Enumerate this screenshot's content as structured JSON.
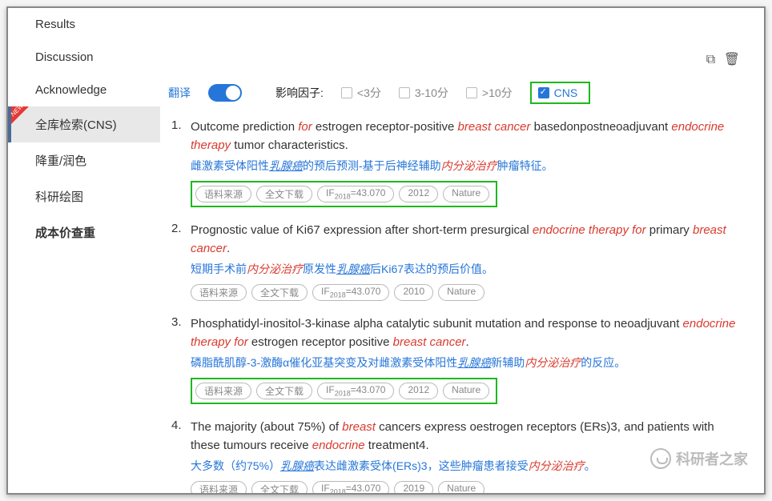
{
  "sidebar": {
    "items": [
      {
        "label": "Results",
        "active": false,
        "bold": false,
        "new": false
      },
      {
        "label": "Discussion",
        "active": false,
        "bold": false,
        "new": false
      },
      {
        "label": "Acknowledge",
        "active": false,
        "bold": false,
        "new": false
      },
      {
        "label": "全库检索(CNS)",
        "active": true,
        "bold": false,
        "new": true
      },
      {
        "label": "降重/润色",
        "active": false,
        "bold": false,
        "new": false
      },
      {
        "label": "科研绘图",
        "active": false,
        "bold": false,
        "new": false
      },
      {
        "label": "成本价查重",
        "active": false,
        "bold": true,
        "new": false
      }
    ],
    "new_badge": "NEW"
  },
  "filter": {
    "translate": "翻译",
    "impact_factor": "影响因子:",
    "opts": [
      "<3分",
      "3-10分",
      ">10分"
    ],
    "cns": "CNS"
  },
  "tags_common": {
    "source": "语料来源",
    "download": "全文下载",
    "if_prefix": "IF",
    "if_year": "2018",
    "if_val": "=43.070",
    "journal": "Nature"
  },
  "results": [
    {
      "num": "1.",
      "title_parts": [
        {
          "t": "Outcome prediction ",
          "c": ""
        },
        {
          "t": "for",
          "c": "hl-red-i"
        },
        {
          "t": " estrogen receptor-positive ",
          "c": ""
        },
        {
          "t": "breast cancer",
          "c": "hl-red-i"
        },
        {
          "t": " basedonpostneoadjuvant ",
          "c": ""
        },
        {
          "t": "endocrine therapy",
          "c": "hl-red-i"
        },
        {
          "t": " tumor characteristics.",
          "c": ""
        }
      ],
      "trans_parts": [
        {
          "t": "雌激素受体阳性",
          "c": ""
        },
        {
          "t": "乳腺癌",
          "c": "em"
        },
        {
          "t": "的预后预测-基于后神经辅助",
          "c": ""
        },
        {
          "t": "内分泌治疗",
          "c": "red-i"
        },
        {
          "t": "肿瘤特征。",
          "c": ""
        }
      ],
      "year": "2012",
      "boxed": true
    },
    {
      "num": "2.",
      "title_parts": [
        {
          "t": "Prognostic value of Ki67 expression after short-term presurgical ",
          "c": ""
        },
        {
          "t": "endocrine therapy for",
          "c": "hl-red-i"
        },
        {
          "t": " primary ",
          "c": ""
        },
        {
          "t": "breast cancer",
          "c": "hl-red-i"
        },
        {
          "t": ".",
          "c": ""
        }
      ],
      "trans_parts": [
        {
          "t": "短期手术前",
          "c": ""
        },
        {
          "t": "内分泌治疗",
          "c": "red-i"
        },
        {
          "t": "原发性",
          "c": ""
        },
        {
          "t": "乳腺癌",
          "c": "em"
        },
        {
          "t": "后Ki67表达的预后价值。",
          "c": ""
        }
      ],
      "year": "2010",
      "boxed": false
    },
    {
      "num": "3.",
      "title_parts": [
        {
          "t": "Phosphatidyl-inositol-3-kinase alpha catalytic subunit mutation and response to neoadjuvant ",
          "c": ""
        },
        {
          "t": "endocrine therapy for",
          "c": "hl-red-i"
        },
        {
          "t": " estrogen receptor positive ",
          "c": ""
        },
        {
          "t": "breast cancer",
          "c": "hl-red-i"
        },
        {
          "t": ".",
          "c": ""
        }
      ],
      "trans_parts": [
        {
          "t": "磷脂酰肌醇-3-激酶α催化亚基突变及对雌激素受体阳性",
          "c": ""
        },
        {
          "t": "乳腺癌",
          "c": "em"
        },
        {
          "t": "新辅助",
          "c": ""
        },
        {
          "t": "内分泌治疗",
          "c": "red-i"
        },
        {
          "t": "的反应。",
          "c": ""
        }
      ],
      "year": "2012",
      "boxed": true
    },
    {
      "num": "4.",
      "title_parts": [
        {
          "t": "The majority (about 75%) of ",
          "c": ""
        },
        {
          "t": "breast",
          "c": "hl-red-i"
        },
        {
          "t": " cancers express oestrogen receptors (ERs)3, and patients with these tumours receive ",
          "c": ""
        },
        {
          "t": "endocrine",
          "c": "hl-red-i"
        },
        {
          "t": " treatment4.",
          "c": ""
        }
      ],
      "trans_parts": [
        {
          "t": "大多数（约75%）",
          "c": ""
        },
        {
          "t": "乳腺癌",
          "c": "em"
        },
        {
          "t": "表达雌激素受体(ERs)3，这些肿瘤患者接受",
          "c": ""
        },
        {
          "t": "内分泌治疗",
          "c": "red-i"
        },
        {
          "t": "。",
          "c": ""
        }
      ],
      "year": "2019",
      "boxed": false
    }
  ],
  "watermark": "科研者之家"
}
